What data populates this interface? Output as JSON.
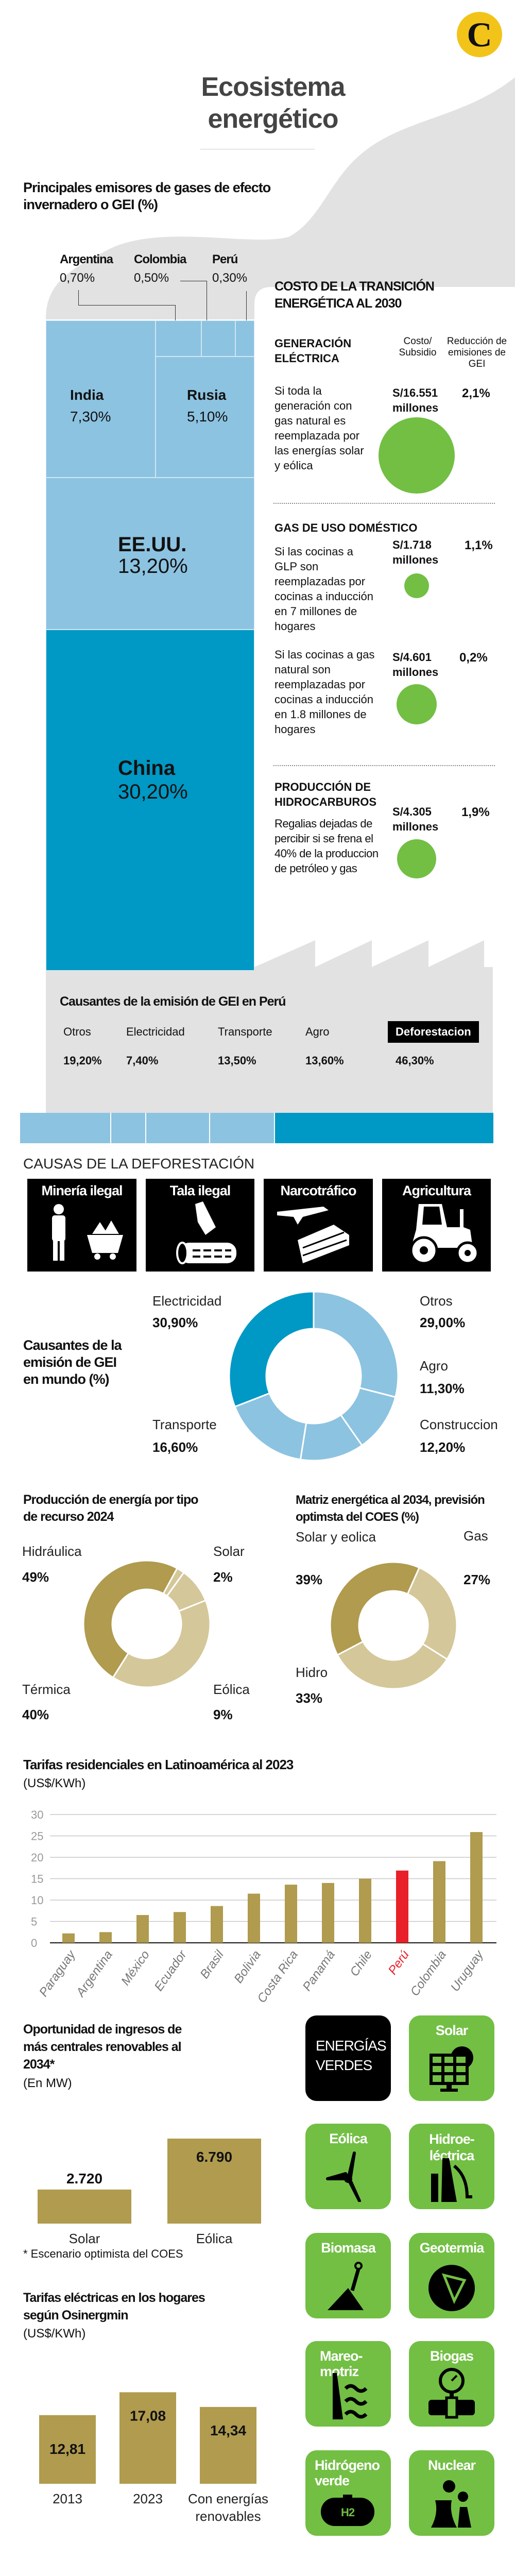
{
  "brand": {
    "logo_letter": "C"
  },
  "header": {
    "title_line1": "Ecosistema",
    "title_line2": "energético"
  },
  "emitters": {
    "title_line1": "Principales emisores de gases de efecto",
    "title_line2": "invernadero o GEI (%)",
    "items": [
      {
        "name": "Argentina",
        "pct": "0,70%"
      },
      {
        "name": "Colombia",
        "pct": "0,50%"
      },
      {
        "name": "Perú",
        "pct": "0,30%"
      },
      {
        "name": "India",
        "pct": "7,30%"
      },
      {
        "name": "Rusia",
        "pct": "5,10%"
      },
      {
        "name": "EE.UU.",
        "pct": "13,20%"
      },
      {
        "name": "China",
        "pct": "30,20%"
      }
    ]
  },
  "transition": {
    "title_line1": "COSTO DE LA TRANSICIÓN",
    "title_line2": "ENERGÉTICA AL 2030",
    "col_cost": "Costo/ Subsidio",
    "col_reduction": "Reducción de emisiones de GEI",
    "sections": [
      {
        "title": "GENERACIÓN ELÉCTRICA",
        "rows": [
          {
            "desc": "Si toda la generación con gas natural es reemplazada por las energías solar y eólica",
            "cost": "S/16.551",
            "unit": "millones",
            "reduction": "2,1%"
          }
        ]
      },
      {
        "title": "GAS DE USO DOMÉSTICO",
        "rows": [
          {
            "desc": "Si las cocinas a GLP son reemplazadas por cocinas a inducción en 7 millones de hogares",
            "cost": "S/1.718",
            "unit": "millones",
            "reduction": "1,1%"
          },
          {
            "desc": "Si las cocinas a gas natural son reemplazadas por cocinas a inducción en 1.8 millones de hogares",
            "cost": "S/4.601",
            "unit": "millones",
            "reduction": "0,2%"
          }
        ]
      },
      {
        "title": "PRODUCCIÓN DE HIDROCARBUROS",
        "rows": [
          {
            "desc": "Regalias dejadas de percibir si se frena el 40% de la produccion de petróleo y gas",
            "cost": "S/4.305",
            "unit": "millones",
            "reduction": "1,9%"
          }
        ]
      }
    ]
  },
  "peru_causes": {
    "title": "Causantes de la emisión de GEI en Perú",
    "items": [
      {
        "name": "Otros",
        "pct": "19,20%",
        "value": 19.2
      },
      {
        "name": "Electricidad",
        "pct": "7,40%",
        "value": 7.4
      },
      {
        "name": "Transporte",
        "pct": "13,50%",
        "value": 13.5
      },
      {
        "name": "Agro",
        "pct": "13,60%",
        "value": 13.6
      },
      {
        "name": "Deforestacion",
        "pct": "46,30%",
        "value": 46.3
      }
    ]
  },
  "deforestation": {
    "title": "CAUSAS DE LA DEFORESTACIÓN",
    "items": [
      "Minería ilegal",
      "Tala ilegal",
      "Narcotráfico",
      "Agricultura"
    ]
  },
  "colors": {
    "light_blue": "#8cc3e1",
    "dark_blue": "#0098c4",
    "green": "#72bf44",
    "gold": "#b09b4e",
    "light_gold": "#d4c799",
    "red": "#e8202a"
  },
  "chart_data": [
    {
      "type": "pie",
      "id": "world",
      "title": "Causantes de la emisión de GEI en mundo (%)",
      "labels": [
        "Otros",
        "Agro",
        "Construccion",
        "Transporte",
        "Electricidad"
      ],
      "pct_labels": [
        "29,00%",
        "11,30%",
        "12,20%",
        "16,60%",
        "30,90%"
      ],
      "values": [
        29.0,
        11.3,
        12.2,
        16.6,
        30.9
      ]
    },
    {
      "type": "pie",
      "id": "prod",
      "title": "Producción de energía por tipo de recurso 2024",
      "labels": [
        "Solar",
        "Eólica",
        "Térmica",
        "Hidráulica"
      ],
      "pct_labels": [
        "2%",
        "9%",
        "40%",
        "49%"
      ],
      "values": [
        2,
        9,
        40,
        49
      ]
    },
    {
      "type": "pie",
      "id": "matrix",
      "title": "Matriz energética al 2034, previsión optimsta del COES (%)",
      "labels": [
        "Gas",
        "Hidro",
        "Solar y eolica"
      ],
      "pct_labels": [
        "27%",
        "33%",
        "39%"
      ],
      "values": [
        27,
        33,
        39
      ]
    },
    {
      "type": "bar",
      "id": "latam",
      "title": "Tarifas residenciales en Latinoamérica al 2023",
      "ylabel": "(US$/KWh)",
      "categories": [
        "Paraguay",
        "Argentina",
        "México",
        "Ecuador",
        "Brasil",
        "Bolivia",
        "Costa Rica",
        "Panamá",
        "Chile",
        "Perú",
        "Colombia",
        "Uruguay"
      ],
      "values": [
        2.2,
        2.5,
        6.5,
        7.2,
        8.6,
        11.5,
        13.6,
        14.0,
        15.0,
        16.9,
        19.1,
        25.9
      ],
      "highlight": "Perú",
      "ylim": [
        0,
        30
      ],
      "yticks": [
        0,
        5,
        10,
        15,
        20,
        25,
        30
      ],
      "grid": true
    },
    {
      "type": "bar",
      "id": "mw",
      "title": "Oportunidad de ingresos de más centrales renovables al 2034*",
      "unit": "(En MW)",
      "categories": [
        "Solar",
        "Eólica"
      ],
      "values": [
        2720,
        6790
      ],
      "value_labels": [
        "2.720",
        "6.790"
      ],
      "note": "* Escenario optimista del COES"
    },
    {
      "type": "bar",
      "id": "osi",
      "title": "Tarifas eléctricas en los hogares según Osinergmin",
      "unit": "(US$/KWh)",
      "categories": [
        "2013",
        "2023",
        "Con energías renovables"
      ],
      "values": [
        12.81,
        17.08,
        14.34
      ],
      "value_labels": [
        "12,81",
        "17,08",
        "14,34"
      ]
    }
  ],
  "green": {
    "header": "ENERGÍAS VERDES",
    "tiles": [
      "Solar",
      "Eólica",
      "Hidroe-léctrica",
      "Biomasa",
      "Geotermia",
      "Mareo-motriz",
      "Biogas",
      "Hidrógeno verde",
      "Nuclear"
    ],
    "h2_label": "H2"
  }
}
